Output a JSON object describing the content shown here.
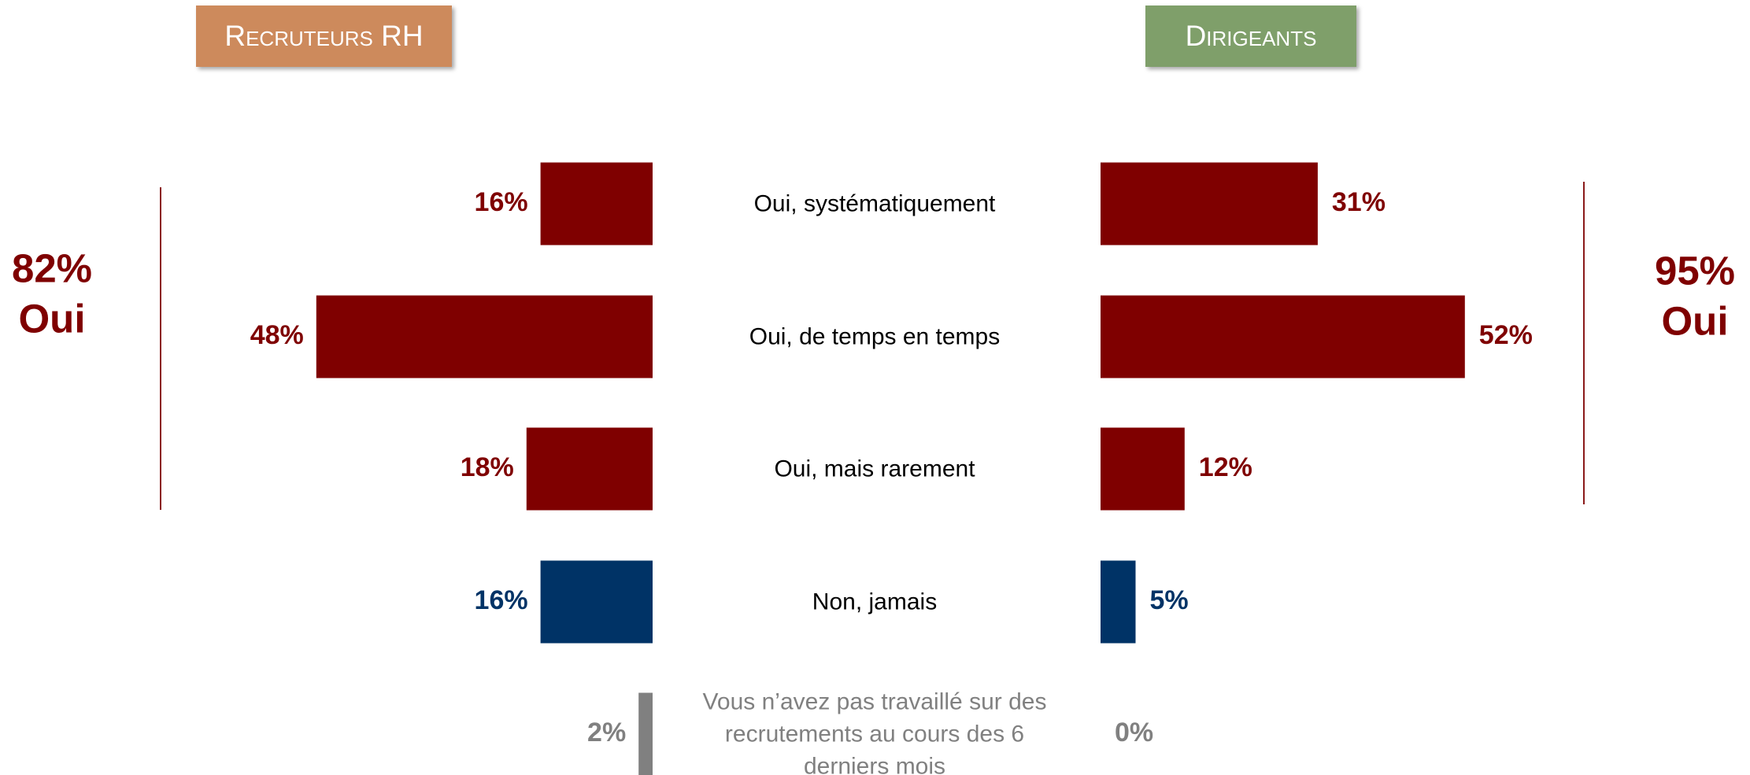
{
  "chart_data": {
    "type": "bar",
    "categories": [
      "Oui, systématiquement",
      "Oui, de temps en temps",
      "Oui, mais rarement",
      "Non, jamais",
      "Vous n’avez pas travaillé sur des recrutements au cours des 6 derniers mois"
    ],
    "category_colors": [
      "#000000",
      "#000000",
      "#000000",
      "#000000",
      "#808080"
    ],
    "series": [
      {
        "name": "Recruteurs RH",
        "color": "#cd8a5c",
        "values": [
          16,
          48,
          18,
          16,
          2
        ],
        "value_labels": [
          "16%",
          "48%",
          "18%",
          "16%",
          "2%"
        ],
        "colors": [
          "#7f0000",
          "#7f0000",
          "#7f0000",
          "#003366",
          "#808080"
        ]
      },
      {
        "name": "Dirigeants",
        "color": "#7f9f6a",
        "values": [
          31,
          52,
          12,
          5,
          0
        ],
        "value_labels": [
          "31%",
          "52%",
          "12%",
          "5%",
          "0%"
        ],
        "colors": [
          "#7f0000",
          "#7f0000",
          "#7f0000",
          "#003366",
          "#808080"
        ]
      }
    ],
    "annotations": [
      {
        "label": "82%",
        "text": "Oui"
      },
      {
        "label": "95%",
        "text": "Oui"
      }
    ]
  }
}
